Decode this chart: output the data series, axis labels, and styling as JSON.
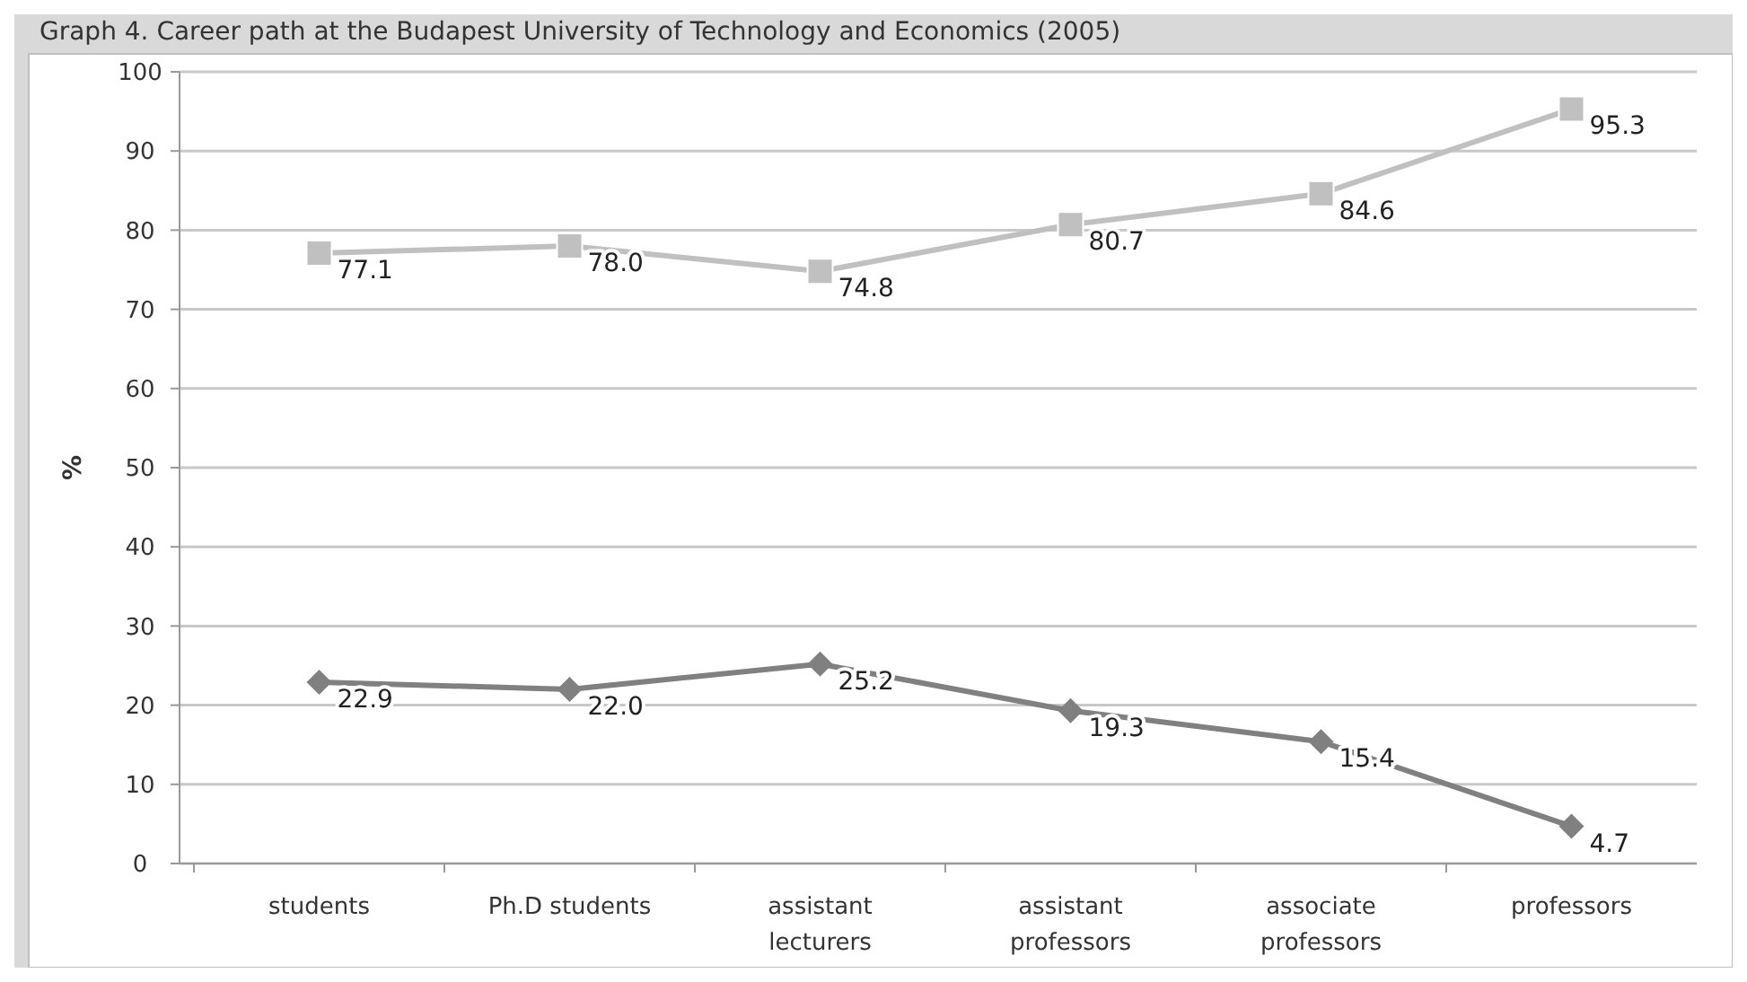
{
  "chart_data": {
    "type": "line",
    "title": "Graph 4. Career path at the Budapest University of Technology and Economics (2005)",
    "ylabel": "%",
    "categories": [
      "students",
      "Ph.D students",
      "assistant lecturers",
      "assistant professors",
      "associate professors",
      "professors"
    ],
    "series": [
      {
        "color": "#c0c0c0",
        "marker": "square",
        "values": [
          77.1,
          78.0,
          74.8,
          80.7,
          84.6,
          95.3
        ],
        "value_labels": [
          "77.1",
          "78.0",
          "74.8",
          "80.7",
          "84.6",
          "95.3"
        ]
      },
      {
        "color": "#808080",
        "marker": "diamond",
        "values": [
          22.9,
          22.0,
          25.2,
          19.3,
          15.4,
          4.7
        ],
        "value_labels": [
          "22.9",
          "22.0",
          "25.2",
          "19.3",
          "15.4",
          "4.7"
        ]
      }
    ],
    "ylim": [
      0,
      100
    ],
    "yticks": [
      0,
      10,
      20,
      30,
      40,
      50,
      60,
      70,
      80,
      90,
      100
    ],
    "grid": "y"
  }
}
